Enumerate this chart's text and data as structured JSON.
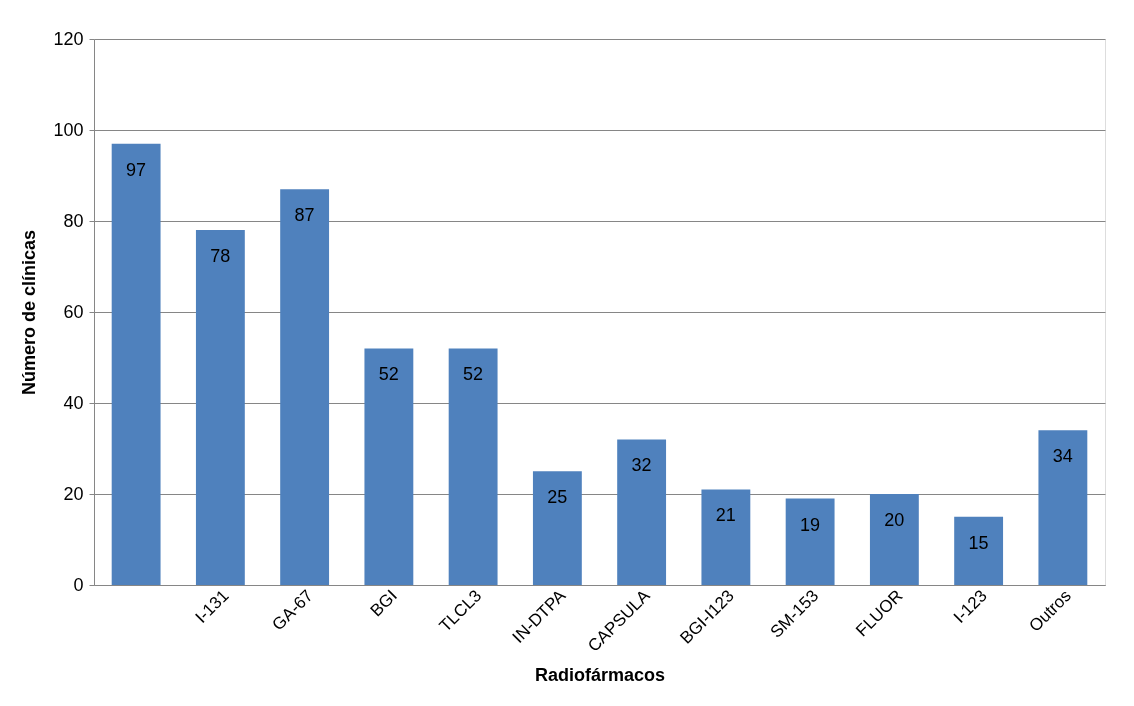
{
  "chart_data": {
    "type": "bar",
    "xlabel": "Radiofármacos",
    "ylabel": "Número de  clínicas",
    "categories": [
      null,
      "I-131",
      "GA-67",
      "BGI",
      "TLCL3",
      "IN-DTPA",
      "CAPSULA",
      "BGI-I123",
      "SM-153",
      "FLUOR",
      "I-123",
      "Outros"
    ],
    "values": [
      97,
      78,
      87,
      52,
      52,
      25,
      32,
      21,
      19,
      20,
      15,
      34
    ],
    "color": "#4f81bd",
    "ylim": [
      0,
      120
    ],
    "yticks": [
      0,
      20,
      40,
      60,
      80,
      100,
      120
    ],
    "grid": "y",
    "data_labels": true
  }
}
